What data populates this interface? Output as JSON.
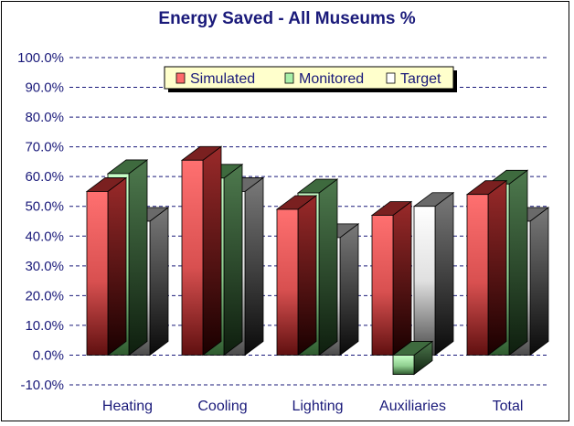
{
  "chart_data": {
    "type": "bar",
    "title": "Energy Saved - All Museums %",
    "categories": [
      "Heating",
      "Cooling",
      "Lighting",
      "Auxiliaries",
      "Total"
    ],
    "series": [
      {
        "name": "Simulated",
        "values": [
          55.0,
          65.5,
          49.0,
          47.0,
          54.0
        ]
      },
      {
        "name": "Monitored",
        "values": [
          61.0,
          59.5,
          54.5,
          -6.5,
          57.5
        ]
      },
      {
        "name": "Target",
        "values": [
          45.0,
          55.0,
          39.5,
          50.0,
          45.0
        ]
      }
    ],
    "ylim": [
      -10,
      100
    ],
    "yticks": [
      "-10.0%",
      "0.0%",
      "10.0%",
      "20.0%",
      "30.0%",
      "40.0%",
      "50.0%",
      "60.0%",
      "70.0%",
      "80.0%",
      "90.0%",
      "100.0%"
    ],
    "grid": true,
    "legend_position": "top-center",
    "colors": {
      "Simulated": "#ff6b6b",
      "Monitored": "#a8f0a8",
      "Target": "#ffffff",
      "axis_text": "#1a1a7a",
      "legend_bg": "#ffffcc"
    }
  }
}
